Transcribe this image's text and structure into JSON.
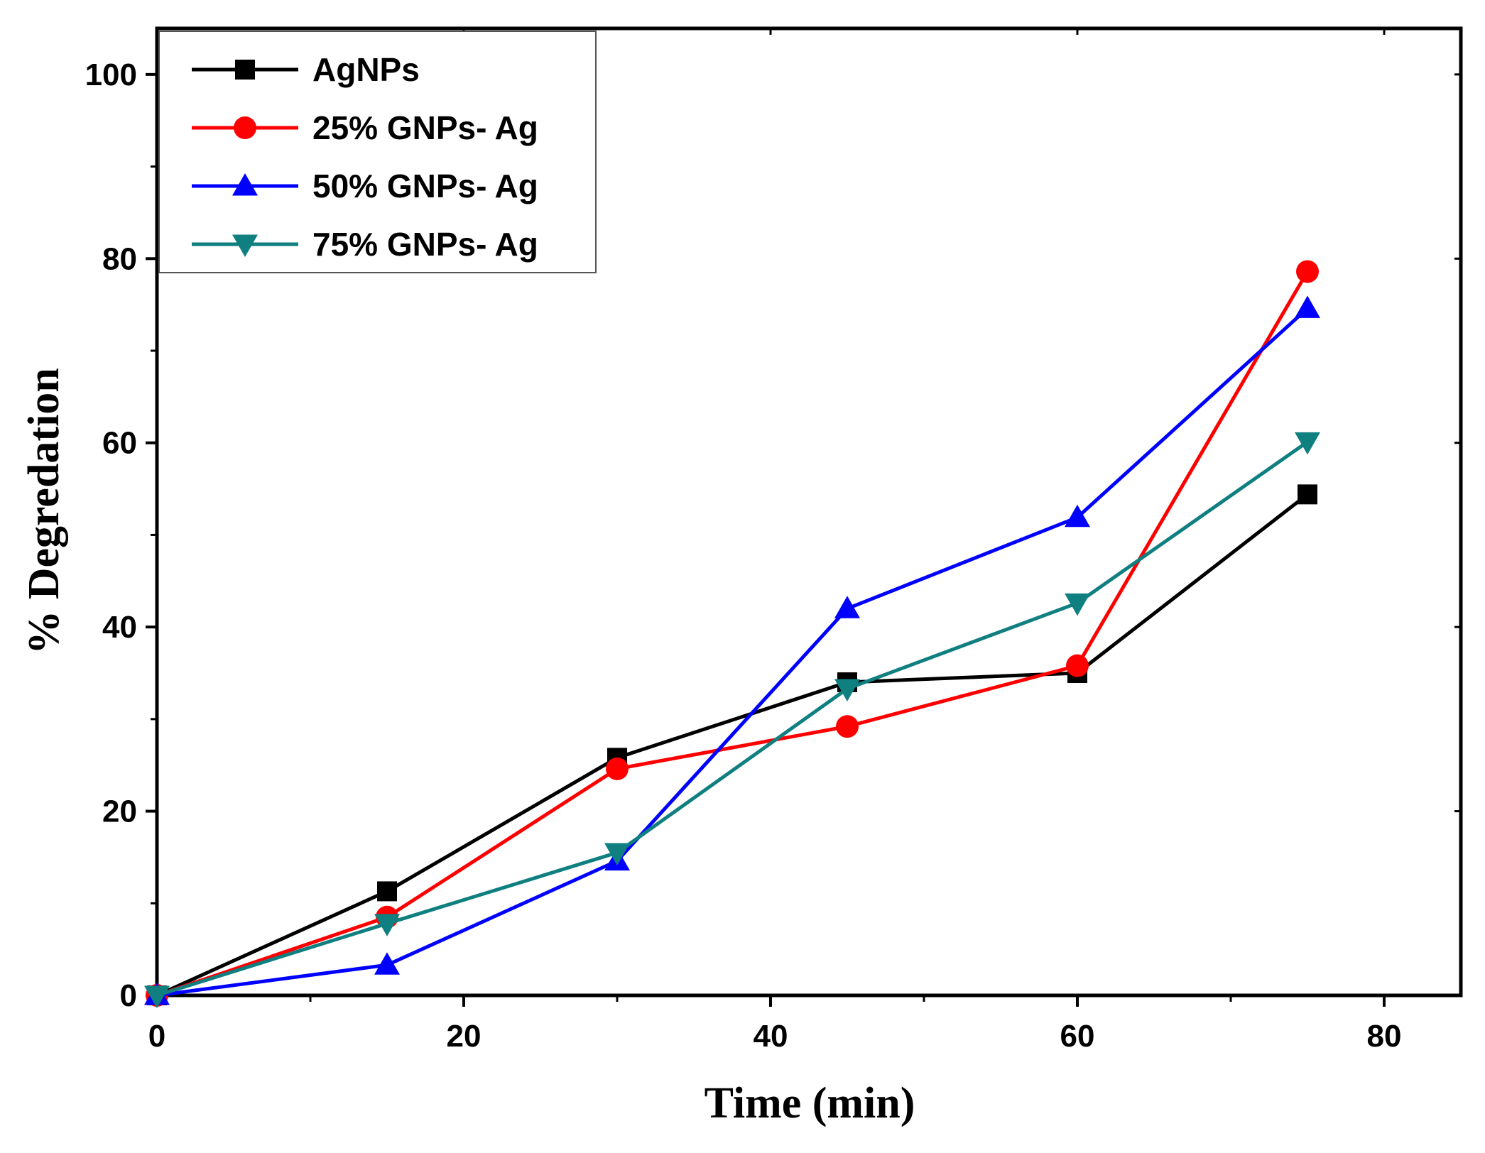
{
  "chart_data": {
    "type": "line",
    "title": "",
    "xlabel": "Time (min)",
    "ylabel": "% Degredation",
    "xlim": [
      0,
      85
    ],
    "ylim": [
      0,
      105
    ],
    "x_ticks": [
      0,
      20,
      40,
      60,
      80
    ],
    "x_tick_labels": [
      "0",
      "20",
      "40",
      "60",
      "80"
    ],
    "y_ticks": [
      0,
      20,
      40,
      60,
      80,
      100
    ],
    "y_tick_labels": [
      "0",
      "20",
      "40",
      "60",
      "80",
      "100"
    ],
    "grid": false,
    "legend_position": "top-left",
    "x": [
      0,
      15,
      30,
      45,
      60,
      75
    ],
    "series": [
      {
        "name": "AgNPs",
        "color": "#000000",
        "marker": "square",
        "values": [
          0,
          11.3,
          25.8,
          34.0,
          35.0,
          54.4
        ]
      },
      {
        "name": "25% GNPs- Ag",
        "color": "#ff0000",
        "marker": "circle",
        "values": [
          0,
          8.5,
          24.6,
          29.2,
          35.8,
          78.6
        ]
      },
      {
        "name": "50% GNPs- Ag",
        "color": "#0000ff",
        "marker": "triangle-up",
        "values": [
          0,
          3.3,
          14.6,
          42.0,
          51.9,
          74.6
        ]
      },
      {
        "name": "75% GNPs- Ag",
        "color": "#0f7f80",
        "marker": "triangle-down",
        "values": [
          0,
          7.8,
          15.5,
          33.3,
          42.6,
          60.1
        ]
      }
    ]
  }
}
